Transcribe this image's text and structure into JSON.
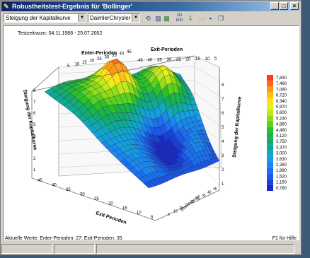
{
  "window": {
    "title": "Robustheitstest-Ergebnis für 'Bollinger'",
    "icon": "strategy-icon",
    "buttons": {
      "minimize": "_",
      "maximize": "□",
      "close": "×"
    }
  },
  "toolbar": {
    "metric_select": "Steigung der Kapitalkurve",
    "symbol_select": "DaimlerChrysler NA",
    "tools": [
      "3d-rotate-icon",
      "bar-view-icon",
      "color-map-icon",
      "info-2d-icon",
      "export-icon",
      "open-folder-icon",
      "save-icon",
      "copy-icon"
    ]
  },
  "chart": {
    "period": "Testzeitraum: 04.11.1988 - 25.07.2002",
    "axis_enter": "Enter-Perioden",
    "axis_exit_top": "Exit-Perioden",
    "axis_exit_bottom": "Exit-Perioden",
    "axis_enter_side": "Enter-Perioden",
    "axis_z_left": "Steigung der Kapitalkurve",
    "axis_z_right": "Steigung der Kapitalkurve",
    "z_ticks": [
      "1",
      "2",
      "3",
      "4",
      "5",
      "6",
      "7",
      "8"
    ],
    "exit_ticks": [
      "45",
      "40",
      "35",
      "30",
      "25",
      "20",
      "15",
      "10",
      "5"
    ],
    "enter_ticks": [
      "5",
      "10",
      "15",
      "20",
      "25",
      "30",
      "35",
      "40",
      "45"
    ],
    "legend": {
      "values": [
        "7,830",
        "7,460",
        "7,090",
        "6,720",
        "6,340",
        "5,970",
        "5,600",
        "5,230",
        "4,860",
        "4,490",
        "4,120",
        "3,750",
        "3,370",
        "3,000",
        "2,630",
        "2,260",
        "1,890",
        "1,520",
        "1,150",
        "0,780"
      ],
      "colors": [
        "#ff3a1a",
        "#ff6a1a",
        "#ff9a1a",
        "#ffc01a",
        "#ffe01a",
        "#e8f01a",
        "#c0e81a",
        "#90dc1a",
        "#5cd020",
        "#2ec02a",
        "#1cb448",
        "#14aa70",
        "#10a898",
        "#10a8c0",
        "#14a0e0",
        "#1a88f0",
        "#1a70f0",
        "#1a58e8",
        "#1a40d8",
        "#1a2ac8"
      ]
    }
  },
  "status": {
    "current_values": "Aktuelle Werte: Enter-Perioden: 27; Exit-Perioden: 35",
    "help": "F1 für Hilfe"
  }
}
